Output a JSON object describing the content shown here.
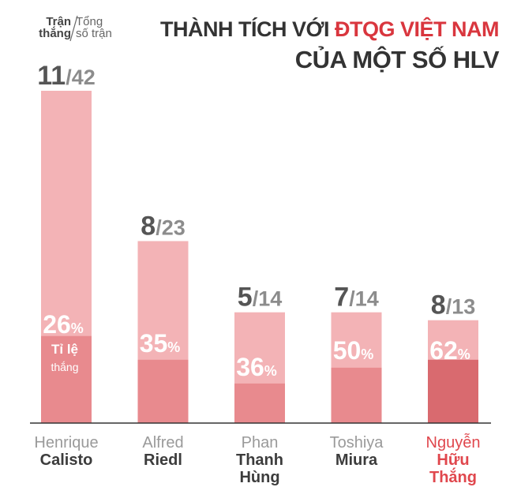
{
  "title": {
    "part1": "THÀNH TÍCH VỚI ",
    "part2": "ĐTQG VIỆT NAM",
    "line2": "CỦA MỘT SỐ HLV"
  },
  "legend": {
    "wins_line1": "Trận",
    "wins_line2": "thắng",
    "total_line1": "Tổng",
    "total_line2": "số trận",
    "rate_line1": "Tỉ lệ",
    "rate_line2": "thắng"
  },
  "colors": {
    "total_bar": "#f3b3b6",
    "win_bar": "#e88a8e",
    "win_bar_highlight": "#d96a6f",
    "highlight_name": "#e0474d",
    "number_dark": "#555555",
    "number_light": "#8c8c8c",
    "baseline": "#333333"
  },
  "chart_data": {
    "type": "bar",
    "categories": [
      "Henrique Calisto",
      "Alfred Riedl",
      "Phan Thanh Hùng",
      "Toshiya Miura",
      "Nguyễn Hữu Thắng"
    ],
    "coaches": [
      {
        "first": [
          "Henrique"
        ],
        "last": [
          "Calisto"
        ],
        "wins": 11,
        "total": 42,
        "rate_label": "26%",
        "highlight": false
      },
      {
        "first": [
          "Alfred"
        ],
        "last": [
          "Riedl"
        ],
        "wins": 8,
        "total": 23,
        "rate_label": "35%",
        "highlight": false
      },
      {
        "first": [
          "Phan"
        ],
        "last": [
          "Thanh",
          "Hùng"
        ],
        "wins": 5,
        "total": 14,
        "rate_label": "36%",
        "highlight": false
      },
      {
        "first": [
          "Toshiya"
        ],
        "last": [
          "Miura"
        ],
        "wins": 7,
        "total": 14,
        "rate_label": "50%",
        "highlight": false
      },
      {
        "first": [
          "Nguyễn"
        ],
        "last": [
          "Hữu",
          "Thắng"
        ],
        "wins": 8,
        "total": 13,
        "rate_label": "62%",
        "highlight": true
      }
    ],
    "series": [
      {
        "name": "Trận thắng",
        "values": [
          11,
          8,
          5,
          7,
          8
        ]
      },
      {
        "name": "Tổng số trận",
        "values": [
          42,
          23,
          14,
          14,
          13
        ]
      }
    ],
    "ylim": [
      0,
      42
    ]
  }
}
